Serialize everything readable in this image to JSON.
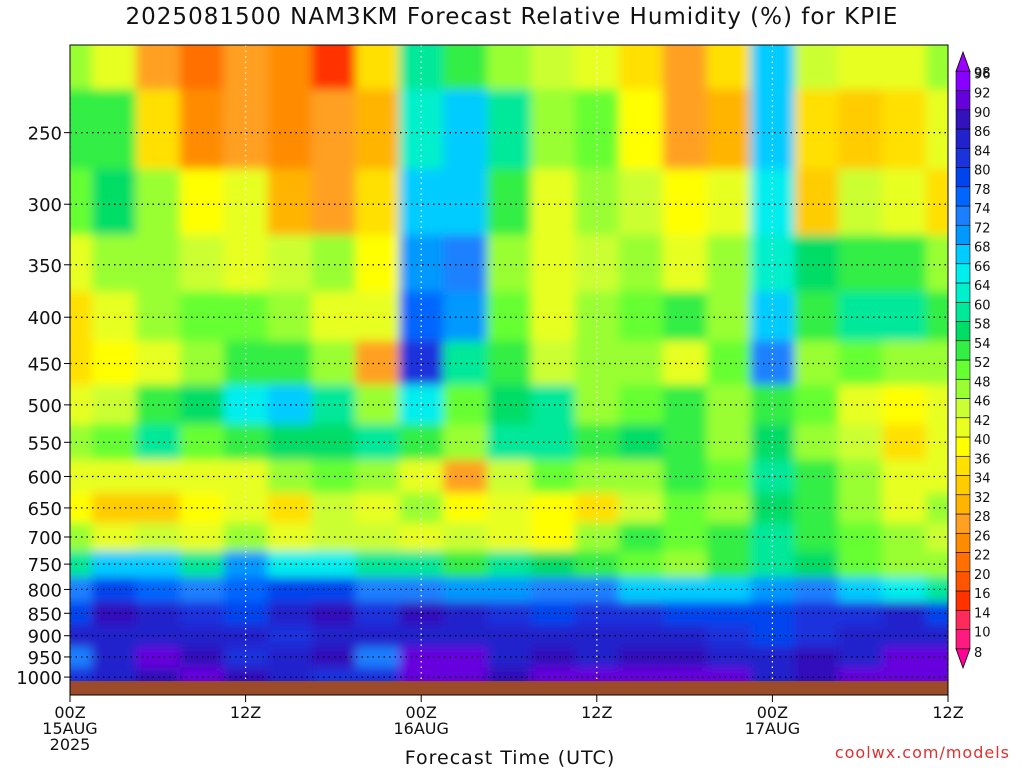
{
  "chart_data": {
    "type": "heatmap",
    "title": "2025081500 NAM3KM Forecast Relative Humidity (%) for KPIE",
    "xlabel": "Forecast Time (UTC)",
    "ylabel": "",
    "y_axis": "pressure (hPa), reversed, log-like spacing",
    "xlim_hours": [
      0,
      60
    ],
    "ylim": [
      1010,
      200
    ],
    "x_ticks": [
      {
        "hour": 0,
        "lines": [
          "00Z",
          "15AUG",
          "2025"
        ]
      },
      {
        "hour": 12,
        "lines": [
          "12Z"
        ]
      },
      {
        "hour": 24,
        "lines": [
          "00Z",
          "16AUG"
        ]
      },
      {
        "hour": 36,
        "lines": [
          "12Z"
        ]
      },
      {
        "hour": 48,
        "lines": [
          "00Z",
          "17AUG"
        ]
      },
      {
        "hour": 60,
        "lines": [
          "12Z"
        ]
      }
    ],
    "y_ticks": [
      250,
      300,
      350,
      400,
      450,
      500,
      550,
      600,
      650,
      700,
      750,
      800,
      850,
      900,
      950,
      1000
    ],
    "grid": true,
    "colorbar": {
      "levels": [
        8,
        10,
        14,
        16,
        20,
        22,
        26,
        28,
        32,
        34,
        36,
        40,
        42,
        46,
        48,
        52,
        54,
        58,
        60,
        64,
        66,
        68,
        72,
        74,
        78,
        80,
        84,
        86,
        90,
        92,
        96,
        98
      ],
      "colors": [
        "#ff0099",
        "#ff1a80",
        "#ff2a5c",
        "#ff3300",
        "#ff5500",
        "#ff7000",
        "#ff8c00",
        "#ffa020",
        "#ffb400",
        "#ffcc00",
        "#ffe000",
        "#ffff00",
        "#e8ff20",
        "#ccff33",
        "#99ff33",
        "#66ff33",
        "#33ee44",
        "#00dd66",
        "#00e899",
        "#00f0cc",
        "#00eeee",
        "#00ccff",
        "#0099ff",
        "#1a80ff",
        "#0066ff",
        "#0044ee",
        "#1a33dd",
        "#2222cc",
        "#3311bb",
        "#6600dd",
        "#8800ff",
        "#9900ff"
      ]
    },
    "rh_grid": {
      "times_hours": [
        0,
        3,
        6,
        9,
        12,
        15,
        18,
        21,
        24,
        27,
        30,
        33,
        36,
        39,
        42,
        45,
        48,
        51,
        54,
        57,
        60
      ],
      "levels_hpa": [
        1000,
        950,
        900,
        850,
        800,
        750,
        700,
        650,
        600,
        550,
        500,
        450,
        400,
        350,
        300,
        250,
        200
      ],
      "values": [
        [
          85,
          86,
          90,
          92,
          90,
          88,
          84,
          85,
          92,
          92,
          90,
          94,
          92,
          92,
          94,
          92,
          86,
          90,
          92,
          94,
          94
        ],
        [
          76,
          88,
          92,
          90,
          84,
          86,
          90,
          74,
          92,
          94,
          86,
          90,
          88,
          90,
          90,
          86,
          88,
          90,
          88,
          92,
          92
        ],
        [
          86,
          86,
          88,
          86,
          86,
          84,
          86,
          88,
          86,
          86,
          88,
          88,
          86,
          86,
          86,
          84,
          82,
          84,
          86,
          88,
          86
        ],
        [
          80,
          90,
          88,
          84,
          82,
          88,
          90,
          84,
          90,
          88,
          84,
          82,
          84,
          84,
          82,
          80,
          80,
          84,
          84,
          86,
          82
        ],
        [
          74,
          80,
          78,
          76,
          78,
          80,
          80,
          74,
          76,
          72,
          72,
          76,
          74,
          70,
          70,
          68,
          72,
          74,
          70,
          66,
          62
        ],
        [
          60,
          68,
          70,
          62,
          72,
          66,
          66,
          60,
          62,
          56,
          60,
          58,
          56,
          52,
          50,
          56,
          60,
          58,
          52,
          50,
          48
        ],
        [
          48,
          44,
          46,
          42,
          50,
          42,
          46,
          46,
          42,
          46,
          44,
          40,
          50,
          54,
          52,
          54,
          60,
          56,
          52,
          48,
          46
        ],
        [
          40,
          34,
          34,
          40,
          42,
          38,
          46,
          44,
          48,
          40,
          44,
          40,
          38,
          46,
          52,
          48,
          58,
          56,
          48,
          44,
          48
        ],
        [
          42,
          42,
          44,
          42,
          44,
          48,
          52,
          50,
          42,
          30,
          46,
          52,
          50,
          48,
          54,
          52,
          62,
          54,
          48,
          44,
          44
        ],
        [
          50,
          52,
          60,
          52,
          56,
          58,
          58,
          60,
          56,
          48,
          62,
          60,
          56,
          58,
          54,
          50,
          58,
          50,
          46,
          38,
          42
        ],
        [
          44,
          46,
          54,
          58,
          66,
          70,
          60,
          48,
          66,
          52,
          58,
          62,
          48,
          52,
          56,
          50,
          54,
          52,
          44,
          40,
          44
        ],
        [
          38,
          40,
          44,
          50,
          54,
          54,
          48,
          30,
          84,
          60,
          56,
          46,
          48,
          50,
          44,
          52,
          76,
          48,
          52,
          48,
          50
        ],
        [
          36,
          44,
          48,
          52,
          52,
          48,
          44,
          42,
          78,
          72,
          52,
          44,
          50,
          52,
          56,
          50,
          70,
          56,
          60,
          62,
          54
        ],
        [
          42,
          48,
          50,
          46,
          44,
          46,
          48,
          40,
          72,
          76,
          50,
          42,
          46,
          48,
          44,
          48,
          64,
          58,
          54,
          56,
          50
        ],
        [
          52,
          58,
          48,
          40,
          42,
          32,
          30,
          38,
          68,
          70,
          54,
          44,
          48,
          46,
          40,
          42,
          66,
          34,
          46,
          42,
          38
        ],
        [
          56,
          54,
          38,
          26,
          28,
          26,
          30,
          32,
          64,
          68,
          60,
          50,
          52,
          40,
          30,
          32,
          70,
          36,
          34,
          36,
          44
        ],
        [
          48,
          42,
          28,
          22,
          28,
          26,
          16,
          36,
          62,
          54,
          50,
          46,
          44,
          36,
          30,
          36,
          68,
          46,
          42,
          44,
          48
        ]
      ]
    }
  },
  "watermark": "coolwx.com/models"
}
